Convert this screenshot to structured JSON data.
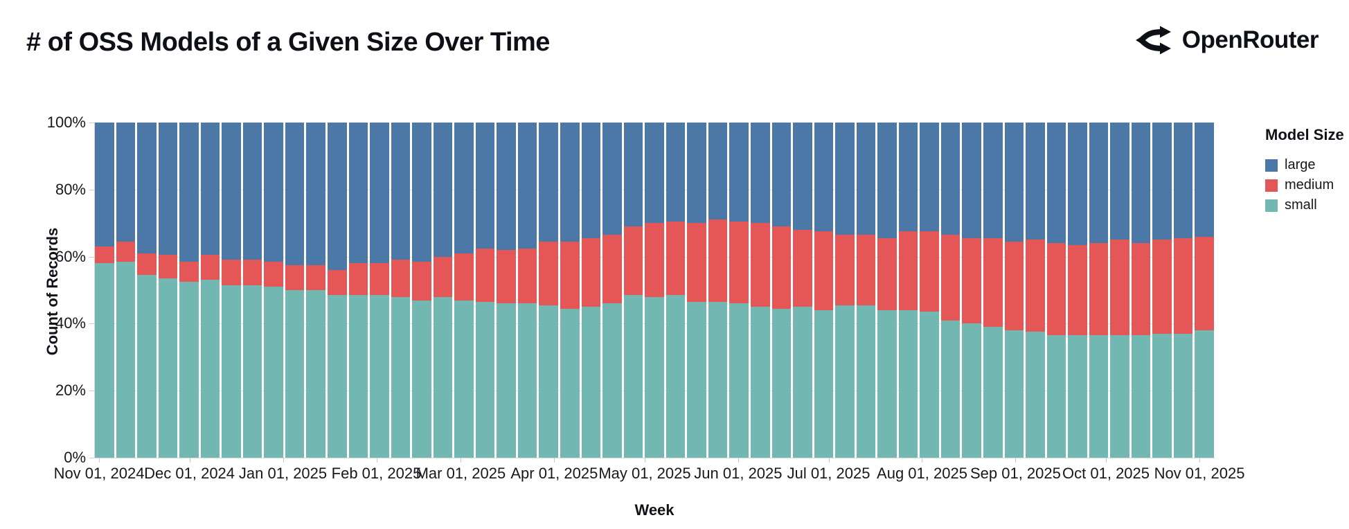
{
  "header": {
    "title": "# of OSS Models of a Given Size Over Time",
    "brand": "OpenRouter"
  },
  "chart_data": {
    "type": "bar",
    "stacked": true,
    "percent_stacked": true,
    "title": "# of OSS Models of a Given Size Over Time",
    "xlabel": "Week",
    "ylabel": "Count of Records",
    "ylim": [
      0,
      100
    ],
    "grid": true,
    "legend_title": "Model Size",
    "legend_position": "right",
    "num_weeks": 53,
    "y_tick_labels": [
      "100%",
      "80%",
      "60%",
      "40%",
      "20%",
      "0%"
    ],
    "x_tick_labels": [
      "Nov 01, 2024",
      "Dec 01, 2024",
      "Jan 01, 2025",
      "Feb 01, 2025",
      "Mar 01, 2025",
      "Apr 01, 2025",
      "May 01, 2025",
      "Jun 01, 2025",
      "Jul 01, 2025",
      "Aug 01, 2025",
      "Sep 01, 2025",
      "Oct 01, 2025",
      "Nov 01, 2025"
    ],
    "series": [
      {
        "name": "large",
        "color": "#4c78a8",
        "values": [
          37,
          35.5,
          39,
          39.5,
          41.5,
          39.5,
          41,
          41,
          41.5,
          42.5,
          42.5,
          44,
          42,
          42,
          41,
          41.5,
          40,
          39,
          37.5,
          38,
          37.5,
          35.5,
          35.5,
          34.5,
          33.5,
          31,
          30,
          29.5,
          30,
          29,
          29.5,
          30,
          31,
          32,
          32.5,
          33.5,
          33.5,
          34.5,
          32.5,
          32.5,
          33.5,
          34.5,
          34.5,
          35.5,
          35,
          36,
          36.5,
          36,
          35,
          36,
          35,
          34.5,
          34
        ]
      },
      {
        "name": "medium",
        "color": "#e45756",
        "values": [
          5,
          6,
          6.5,
          7,
          6,
          7.5,
          7.5,
          7.5,
          7.5,
          7.5,
          7.5,
          7.5,
          9.5,
          9.5,
          11,
          11.5,
          12,
          14,
          16,
          16,
          16.5,
          19,
          20,
          20.5,
          20.5,
          20.5,
          22,
          22,
          23.5,
          24.5,
          24.5,
          25,
          24.5,
          23,
          23.5,
          21,
          21,
          21.5,
          23.5,
          24,
          25.5,
          25.5,
          26.5,
          26.5,
          27.5,
          27.5,
          27,
          27.5,
          28.5,
          27.5,
          28,
          28.5,
          28
        ]
      },
      {
        "name": "small",
        "color": "#72b7b2",
        "values": [
          58,
          58.5,
          54.5,
          53.5,
          52.5,
          53,
          51.5,
          51.5,
          51,
          50,
          50,
          48.5,
          48.5,
          48.5,
          48,
          47,
          48,
          47,
          46.5,
          46,
          46,
          45.5,
          44.5,
          45,
          46,
          48.5,
          48,
          48.5,
          46.5,
          46.5,
          46,
          45,
          44.5,
          45,
          44,
          45.5,
          45.5,
          44,
          44,
          43.5,
          41,
          40,
          39,
          38,
          37.5,
          36.5,
          36.5,
          36.5,
          36.5,
          36.5,
          37,
          37,
          38
        ]
      }
    ]
  },
  "colors": {
    "background": "#ffffff",
    "text": "#14161f",
    "grid": "#e3e3e3",
    "axis": "#c9c9c9"
  }
}
